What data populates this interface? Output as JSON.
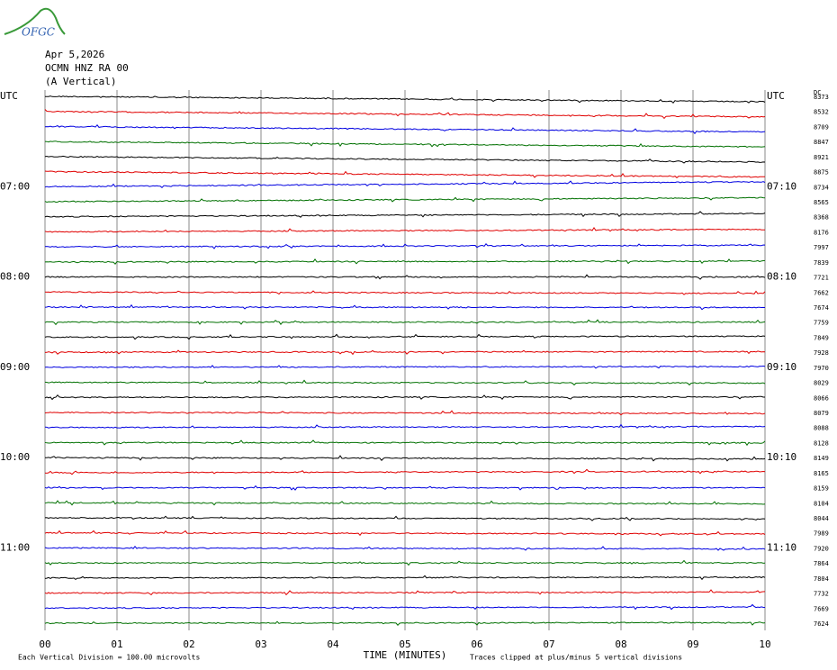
{
  "logo": "OFGC",
  "header": {
    "date": "Apr 5,2026",
    "station": "OCMN HNZ RA 00",
    "component": "(A Vertical)"
  },
  "rows": {
    "left_labels": [
      "UTC",
      null,
      null,
      null,
      null,
      null,
      "07:00",
      null,
      null,
      null,
      null,
      null,
      "08:00",
      null,
      null,
      null,
      null,
      null,
      "09:00",
      null,
      null,
      null,
      null,
      null,
      "10:00",
      null,
      null,
      null,
      null,
      null,
      "11:00",
      null,
      null,
      null,
      null,
      null
    ],
    "right_labels": [
      "UTC",
      null,
      null,
      null,
      null,
      null,
      "07:10",
      null,
      null,
      null,
      null,
      null,
      "08:10",
      null,
      null,
      null,
      null,
      null,
      "09:10",
      null,
      null,
      null,
      null,
      null,
      "10:10",
      null,
      null,
      null,
      null,
      null,
      "11:10",
      null,
      null,
      null,
      null,
      null
    ],
    "dc_label": "DC",
    "dc": [
      8373,
      8532,
      8709,
      8847,
      8921,
      8875,
      8734,
      8565,
      8368,
      8176,
      7997,
      7839,
      7721,
      7662,
      7674,
      7759,
      7849,
      7928,
      7970,
      8029,
      8066,
      8079,
      8088,
      8128,
      8149,
      8165,
      8159,
      8104,
      8044,
      7989,
      7920,
      7864,
      7804,
      7732,
      7669,
      7624
    ],
    "colors": [
      "#000000",
      "#e00000",
      "#0000e0",
      "#007000"
    ]
  },
  "xaxis": {
    "ticks": [
      "00",
      "01",
      "02",
      "03",
      "04",
      "05",
      "06",
      "07",
      "08",
      "09",
      "10"
    ],
    "label": "TIME (MINUTES)"
  },
  "footer": {
    "scale": "Each Vertical Division =  100.00 microvolts",
    "clip": "Traces clipped at plus/minus 5 vertical divisions"
  }
}
